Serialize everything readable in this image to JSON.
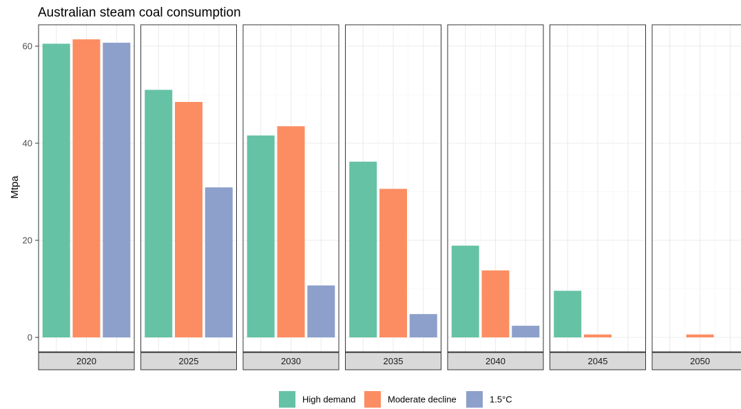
{
  "chart_data": {
    "type": "bar",
    "title": "Australian steam coal consumption",
    "ylabel": "Mtpa",
    "xlabel": "",
    "ylim": [
      0,
      64
    ],
    "yticks": [
      0,
      20,
      40,
      60
    ],
    "facets": [
      "2020",
      "2025",
      "2030",
      "2035",
      "2040",
      "2045",
      "2050"
    ],
    "series": [
      {
        "name": "High demand",
        "color": "#66c2a5",
        "values": [
          60.5,
          51.0,
          41.6,
          36.2,
          18.9,
          9.6,
          0
        ]
      },
      {
        "name": "Moderate decline",
        "color": "#fc8d62",
        "values": [
          61.4,
          48.5,
          43.5,
          30.6,
          13.8,
          0.6,
          0.6
        ]
      },
      {
        "name": "1.5°C",
        "color": "#8da0cb",
        "values": [
          60.7,
          30.9,
          10.7,
          4.8,
          2.4,
          0,
          0
        ]
      }
    ],
    "grid": true,
    "legend_position": "bottom"
  }
}
